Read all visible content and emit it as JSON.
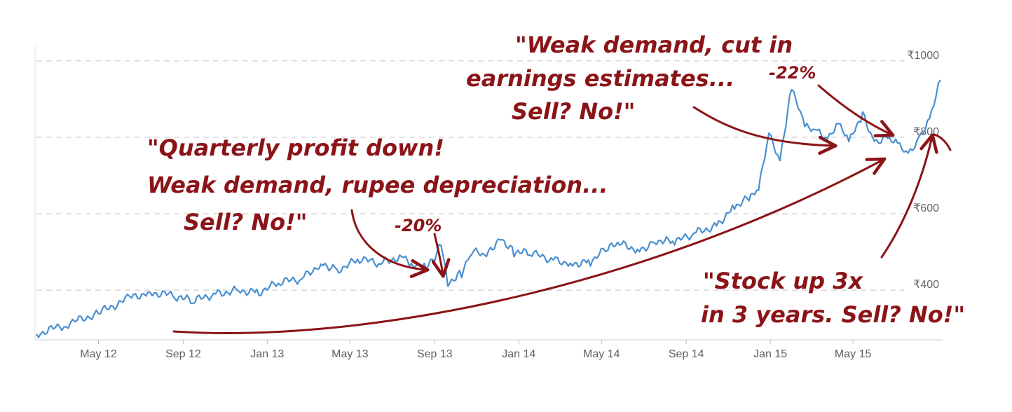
{
  "chart_data": {
    "type": "line",
    "title": "",
    "xlabel": "",
    "ylabel": "",
    "x_ticks": [
      "May 12",
      "Sep 12",
      "Jan 13",
      "May 13",
      "Sep 13",
      "Jan 14",
      "May 14",
      "Sep 14",
      "Jan 15",
      "May 15"
    ],
    "y_ticks": [
      "₹400",
      "₹600",
      "₹800",
      "₹1000"
    ],
    "ylim": [
      270,
      1040
    ],
    "grid": "horizontal dashed",
    "line_color": "#4A8FCF",
    "annotation_color": "#8B1418",
    "series": [
      {
        "x": [
          "2012-02-01",
          "2012-03-15",
          "2012-05-01",
          "2012-06-15",
          "2012-07-15",
          "2012-08-20",
          "2012-09-15",
          "2012-10-15",
          "2012-11-20",
          "2012-12-20",
          "2013-01-20",
          "2013-02-20",
          "2013-03-20",
          "2013-04-15",
          "2013-05-15",
          "2013-06-15",
          "2013-07-15",
          "2013-08-01",
          "2013-08-20",
          "2013-09-01",
          "2013-09-10",
          "2013-09-20",
          "2013-10-10",
          "2013-10-25",
          "2013-11-15",
          "2013-12-05",
          "2013-12-25",
          "2014-01-20",
          "2014-02-20",
          "2014-03-20",
          "2014-04-15",
          "2014-05-10",
          "2014-05-30",
          "2014-06-25",
          "2014-07-20",
          "2014-08-15",
          "2014-09-15",
          "2014-10-15",
          "2014-11-10",
          "2014-12-01",
          "2014-12-15",
          "2014-12-30",
          "2015-01-15",
          "2015-02-01",
          "2015-02-20",
          "2015-03-10",
          "2015-03-25",
          "2015-04-10",
          "2015-04-25",
          "2015-05-15",
          "2015-06-01",
          "2015-06-20",
          "2015-07-05",
          "2015-07-20",
          "2015-08-05",
          "2015-08-20",
          "2015-09-05"
        ],
        "values": [
          285,
          310,
          340,
          380,
          395,
          385,
          370,
          390,
          400,
          395,
          420,
          430,
          470,
          455,
          480,
          470,
          490,
          470,
          465,
          480,
          520,
          420,
          445,
          500,
          490,
          540,
          500,
          495,
          480,
          470,
          475,
          510,
          520,
          505,
          530,
          525,
          550,
          570,
          620,
          640,
          660,
          810,
          745,
          930,
          825,
          815,
          800,
          840,
          785,
          860,
          790,
          800,
          780,
          750,
          800,
          850,
          950
        ]
      }
    ]
  },
  "annotations": {
    "note1": [
      "\"Quarterly profit down!",
      "Weak demand, rupee depreciation...",
      "Sell? No!\""
    ],
    "drop1": "-20%",
    "note2": [
      "\"Weak demand, cut in",
      "earnings estimates...",
      "Sell? No!\""
    ],
    "drop2": "-22%",
    "note3": [
      "\"Stock up 3x",
      "in 3 years. Sell? No!\""
    ]
  }
}
